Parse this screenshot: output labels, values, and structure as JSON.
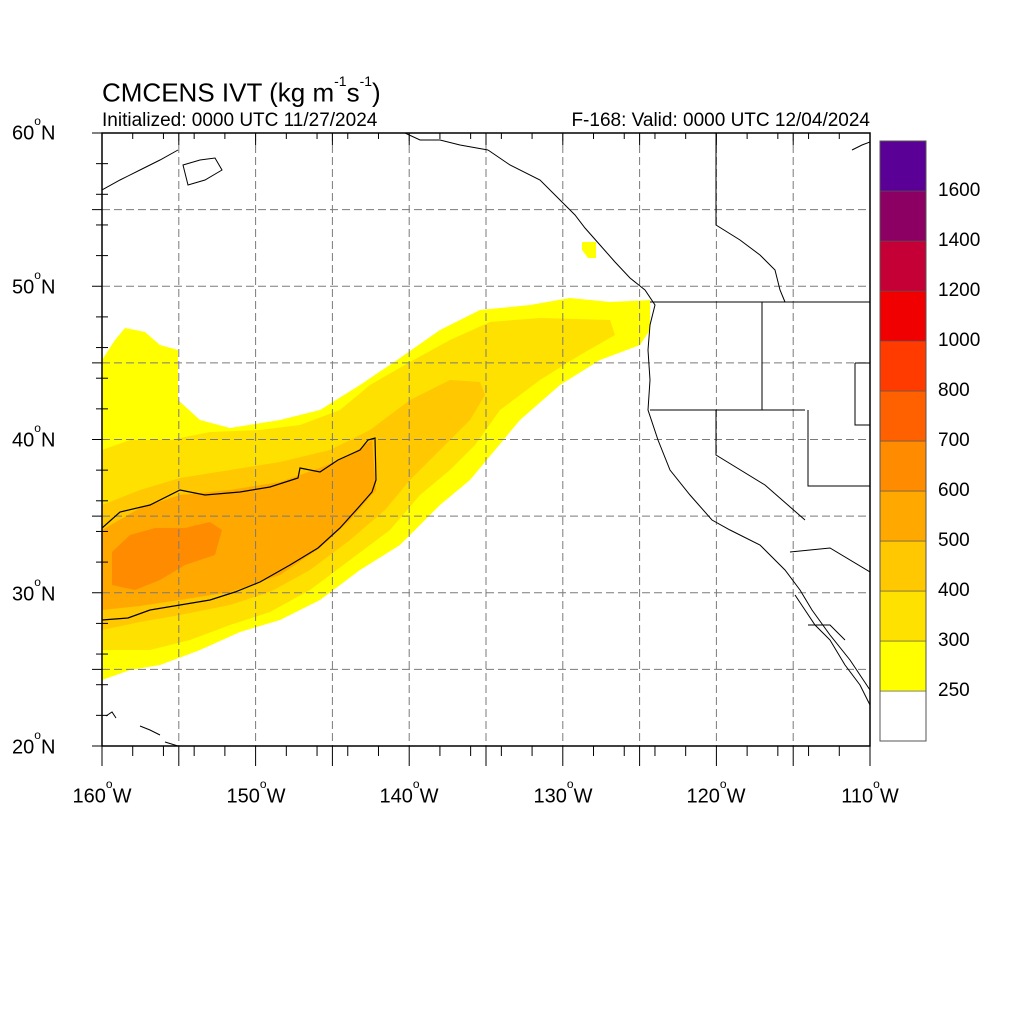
{
  "title": {
    "main": "CMCENS IVT (kg m",
    "sup1": "-1",
    "mid": "s",
    "sup2": "-1",
    "end": ")"
  },
  "subtitle_left": "Initialized: 0000 UTC 11/27/2024",
  "subtitle_right": "F-168: Valid: 0000 UTC 12/04/2024",
  "map": {
    "lon_range": [
      -160,
      -110
    ],
    "lat_range": [
      20,
      60
    ],
    "lat_labels": [
      {
        "lat": 60,
        "deg": "60",
        "hemi": "N"
      },
      {
        "lat": 50,
        "deg": "50",
        "hemi": "N"
      },
      {
        "lat": 40,
        "deg": "40",
        "hemi": "N"
      },
      {
        "lat": 30,
        "deg": "30",
        "hemi": "N"
      },
      {
        "lat": 20,
        "deg": "20",
        "hemi": "N"
      }
    ],
    "lon_labels": [
      {
        "lon": -160,
        "deg": "160",
        "hemi": "W"
      },
      {
        "lon": -150,
        "deg": "150",
        "hemi": "W"
      },
      {
        "lon": -140,
        "deg": "140",
        "hemi": "W"
      },
      {
        "lon": -130,
        "deg": "130",
        "hemi": "W"
      },
      {
        "lon": -120,
        "deg": "120",
        "hemi": "W"
      },
      {
        "lon": -110,
        "deg": "110",
        "hemi": "W"
      }
    ],
    "grid_lines": "dashed",
    "contour_level": 500
  },
  "colorbar": {
    "levels": [
      "250",
      "300",
      "400",
      "500",
      "600",
      "700",
      "800",
      "1000",
      "1200",
      "1400",
      "1600"
    ],
    "colors": [
      "#ffffff",
      "#ffff00",
      "#ffe100",
      "#ffc800",
      "#ffa900",
      "#ff8b00",
      "#ff6000",
      "#ff3b00",
      "#f00000",
      "#c40036",
      "#8b0062",
      "#5a0096"
    ]
  }
}
